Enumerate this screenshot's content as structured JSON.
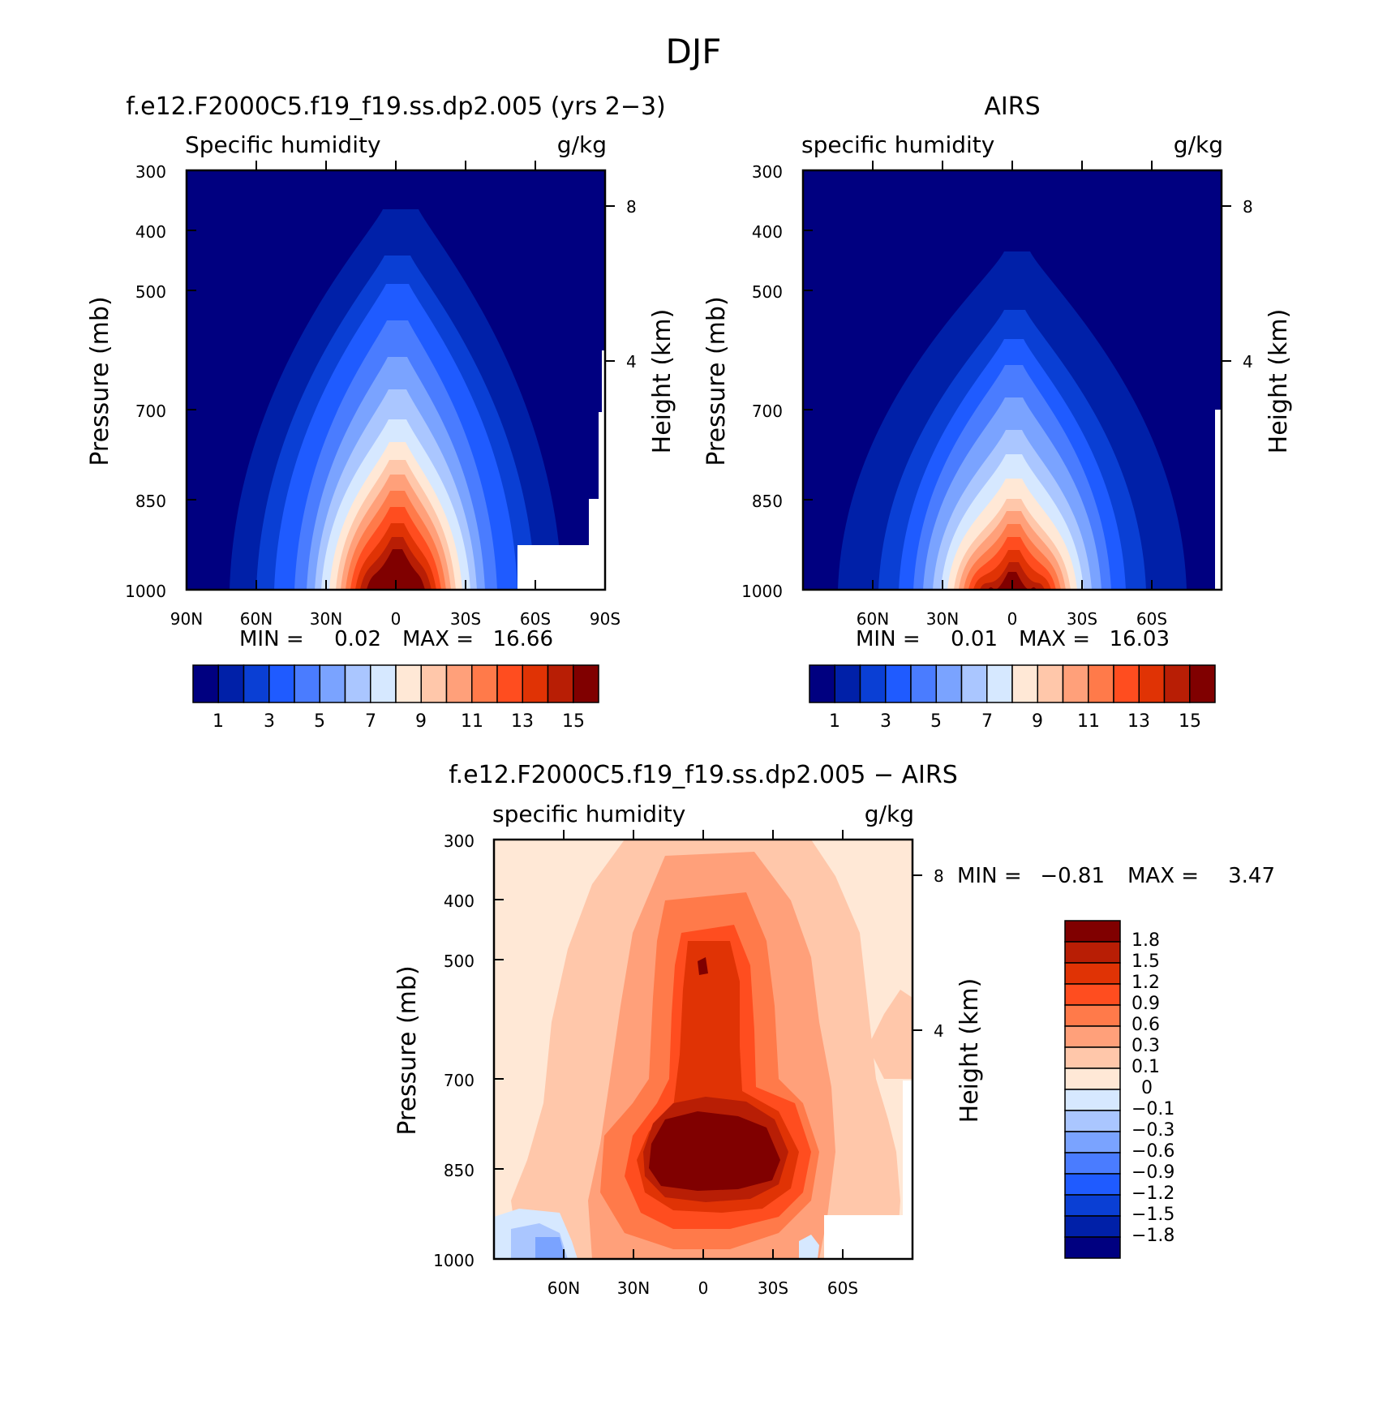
{
  "title": "DJF",
  "colors": {
    "model_levels": [
      "#000080",
      "#0020a8",
      "#0a3fd4",
      "#1f5bff",
      "#4a7cff",
      "#7aa3ff",
      "#aac6ff",
      "#d6e8ff",
      "#ffe8d6",
      "#ffc7aa",
      "#ffa07a",
      "#ff7a4a",
      "#ff4d1f",
      "#e03305",
      "#b81e05",
      "#800000"
    ],
    "diff_levels": [
      "#000080",
      "#0020a8",
      "#0a3fd4",
      "#1f5bff",
      "#4a7cff",
      "#7aa3ff",
      "#aac6ff",
      "#d6e8ff",
      "#ffe8d6",
      "#ffc7aa",
      "#ffa07a",
      "#ff7a4a",
      "#ff4d1f",
      "#e03305",
      "#b81e05",
      "#800000"
    ]
  },
  "chart_data": [
    {
      "type": "heatmap",
      "title": "f.e12.F2000C5.f19_f19.ss.dp2.005 (yrs 2-3)",
      "left_label": "Specific humidity",
      "right_label": "g/kg",
      "ylabel": "Pressure (mb)",
      "y2label": "Height (km)",
      "xticks": [
        "90N",
        "60N",
        "30N",
        "0",
        "30S",
        "60S",
        "90S"
      ],
      "yticks": [
        "300",
        "400",
        "500",
        "700",
        "850",
        "1000"
      ],
      "y2ticks": [
        "8",
        "4"
      ],
      "min_label": "MIN =",
      "min": "0.02",
      "max_label": "MAX =",
      "max": "16.66",
      "colorbar_ticks": [
        "1",
        "3",
        "5",
        "7",
        "9",
        "11",
        "13",
        "15"
      ]
    },
    {
      "type": "heatmap",
      "title": "AIRS",
      "left_label": "specific humidity",
      "right_label": "g/kg",
      "ylabel": "Pressure (mb)",
      "y2label": "Height (km)",
      "xticks": [
        "60N",
        "30N",
        "0",
        "30S",
        "60S"
      ],
      "yticks": [
        "300",
        "400",
        "500",
        "700",
        "850",
        "1000"
      ],
      "y2ticks": [
        "8",
        "4"
      ],
      "min_label": "MIN =",
      "min": "0.01",
      "max_label": "MAX =",
      "max": "16.03",
      "colorbar_ticks": [
        "1",
        "3",
        "5",
        "7",
        "9",
        "11",
        "13",
        "15"
      ]
    },
    {
      "type": "heatmap",
      "title": "f.e12.F2000C5.f19_f19.ss.dp2.005 - AIRS",
      "left_label": "specific humidity",
      "right_label": "g/kg",
      "ylabel": "Pressure (mb)",
      "y2label": "Height (km)",
      "xticks": [
        "60N",
        "30N",
        "0",
        "30S",
        "60S"
      ],
      "yticks": [
        "300",
        "400",
        "500",
        "700",
        "850",
        "1000"
      ],
      "y2ticks": [
        "8",
        "4"
      ],
      "min_label": "MIN =",
      "min": "-0.81",
      "max_label": "MAX =",
      "max": "3.47",
      "colorbar_ticks": [
        "1.8",
        "1.5",
        "1.2",
        "0.9",
        "0.6",
        "0.3",
        "0.1",
        "0",
        "-0.1",
        "-0.3",
        "-0.6",
        "-0.9",
        "-1.2",
        "-1.5",
        "-1.8"
      ]
    }
  ]
}
